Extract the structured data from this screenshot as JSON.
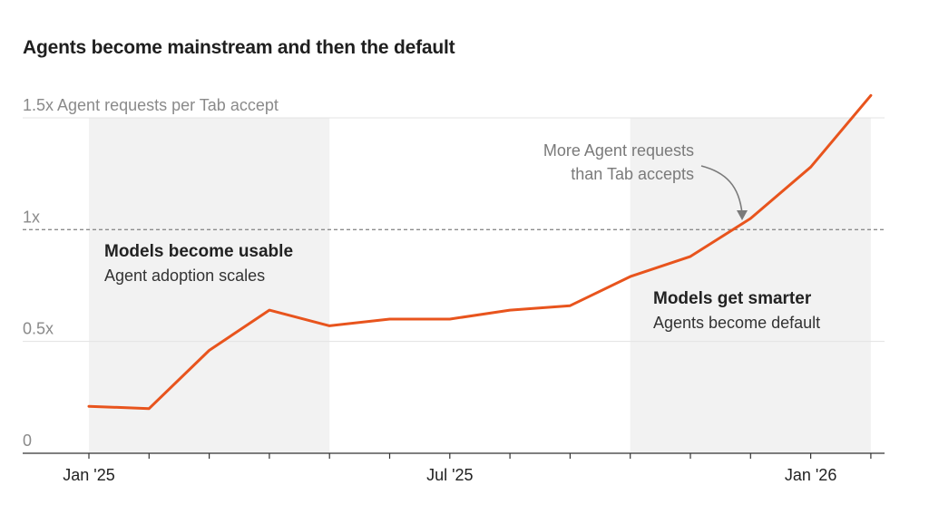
{
  "chart_data": {
    "type": "line",
    "title": "Agents become mainstream and then the default",
    "ylabel": "1.5x Agent requests per Tab accept",
    "xlabel": "",
    "ylim": [
      0,
      1.5
    ],
    "y_ticks": [
      {
        "value": 0,
        "label": "0"
      },
      {
        "value": 0.5,
        "label": "0.5x"
      },
      {
        "value": 1,
        "label": "1x"
      }
    ],
    "x_labels": [
      "Jan '25",
      "Jul '25",
      "Jan '26"
    ],
    "categories": [
      "Jan '25",
      "Feb '25",
      "Mar '25",
      "Apr '25",
      "May '25",
      "Jun '25",
      "Jul '25",
      "Aug '25",
      "Sep '25",
      "Oct '25",
      "Nov '25",
      "Dec '25",
      "Jan '26",
      "Feb '26"
    ],
    "series": [
      {
        "name": "Agent requests per Tab accept",
        "color": "#e8541d",
        "values": [
          0.21,
          0.2,
          0.46,
          0.64,
          0.57,
          0.6,
          0.6,
          0.64,
          0.66,
          0.79,
          0.88,
          1.05,
          1.28,
          1.6
        ]
      }
    ],
    "reference_line": {
      "value": 1,
      "style": "dashed"
    },
    "shaded_regions": [
      {
        "from": "Jan '25",
        "to": "May '25",
        "label": "Models become usable",
        "sublabel": "Agent adoption scales"
      },
      {
        "from": "Oct '25",
        "to": "Feb '26",
        "label": "Models get smarter",
        "sublabel": "Agents become default"
      }
    ],
    "callout": {
      "line1": "More Agent requests",
      "line2": "than Tab accepts",
      "points_to": "Dec '25"
    },
    "grid": true
  },
  "colors": {
    "line": "#e8541d",
    "shade": "#f2f2f2",
    "grid": "#e3e3e3",
    "axis": "#333333",
    "dashed": "#8c8c8c"
  }
}
